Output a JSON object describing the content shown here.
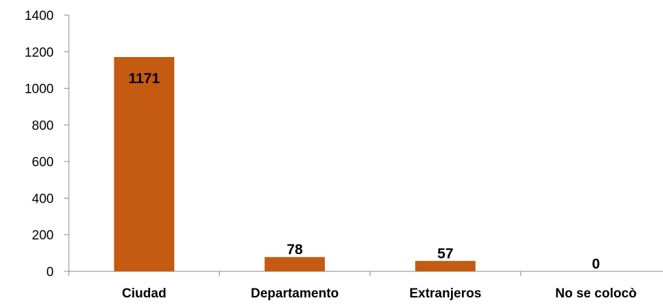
{
  "chart_data": {
    "type": "bar",
    "categories": [
      "Ciudad",
      "Departamento",
      "Extranjeros",
      "No se colocò"
    ],
    "series": [
      {
        "values": [
          1171,
          78,
          57,
          0
        ]
      }
    ],
    "data_labels": [
      "1171",
      "78",
      "57",
      "0"
    ],
    "y_ticks": [
      "0",
      "200",
      "400",
      "600",
      "800",
      "1000",
      "1200",
      "1400"
    ],
    "ylim": [
      0,
      1400
    ],
    "bar_color": "#C0504D",
    "bar_fill": "#C55A11",
    "grid": false,
    "legend": "none"
  }
}
